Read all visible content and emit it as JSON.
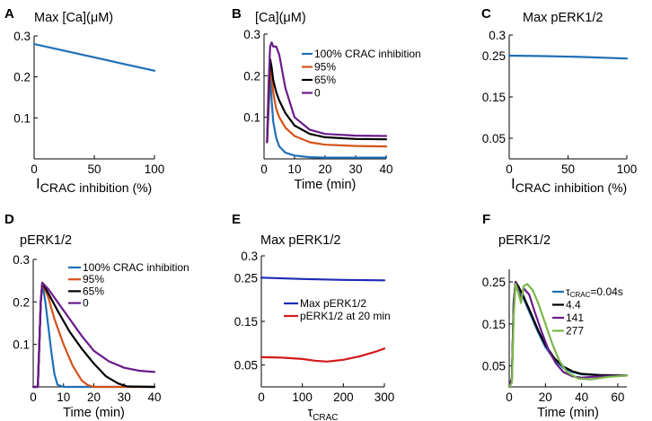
{
  "colors": {
    "blue": "#1f6fb5",
    "orange": "#d4521a",
    "black": "#000000",
    "purple": "#6a1b8a",
    "navy": "#1c2bb5",
    "red": "#d11a1a",
    "green": "#7ab648"
  },
  "chart_data": [
    {
      "id": "A",
      "type": "line",
      "letter": "A",
      "title": "Max [Ca](μM)",
      "xlabel_main": "I",
      "xlabel_sub": "CRAC inhibition (%)",
      "xlim": [
        0,
        100
      ],
      "ylim": [
        0,
        0.3
      ],
      "xticks": [
        0,
        50,
        100
      ],
      "xtick_labels": [
        "0",
        "50",
        "100"
      ],
      "yticks": [
        0.1,
        0.2,
        0.3
      ],
      "ytick_labels": [
        "0.1",
        "0.2",
        "0.3"
      ],
      "series": [
        {
          "name": "Max [Ca]",
          "color": "blue",
          "x": [
            0,
            100
          ],
          "y": [
            0.28,
            0.215
          ]
        }
      ]
    },
    {
      "id": "B",
      "type": "line",
      "letter": "B",
      "title": "[Ca](μM)",
      "xlabel": "Time (min)",
      "xlim": [
        0,
        40
      ],
      "ylim": [
        0,
        0.3
      ],
      "xticks": [
        0,
        10,
        20,
        30,
        40
      ],
      "xtick_labels": [
        "0",
        "10",
        "20",
        "30",
        "40"
      ],
      "yticks": [
        0.1,
        0.2,
        0.3
      ],
      "ytick_labels": [
        "0.1",
        "0.2",
        "0.3"
      ],
      "legend": [
        "100% CRAC inhibition",
        "95%",
        "65%",
        "0"
      ],
      "series": [
        {
          "name": "100% CRAC inhibition",
          "color": "blue",
          "x": [
            1,
            1.5,
            2,
            2.5,
            3,
            4,
            5,
            7,
            10,
            15,
            20,
            30,
            40
          ],
          "y": [
            0.04,
            0.12,
            0.2,
            0.14,
            0.09,
            0.05,
            0.03,
            0.015,
            0.008,
            0.004,
            0.003,
            0.003,
            0.003
          ]
        },
        {
          "name": "95%",
          "color": "orange",
          "x": [
            1,
            1.5,
            2,
            2.5,
            3,
            4,
            5,
            7,
            10,
            15,
            20,
            30,
            40
          ],
          "y": [
            0.04,
            0.14,
            0.22,
            0.2,
            0.16,
            0.12,
            0.1,
            0.075,
            0.055,
            0.04,
            0.034,
            0.031,
            0.03
          ]
        },
        {
          "name": "65%",
          "color": "black",
          "x": [
            1,
            1.5,
            2,
            2.5,
            3,
            4,
            5,
            7,
            10,
            15,
            20,
            30,
            40
          ],
          "y": [
            0.04,
            0.16,
            0.24,
            0.22,
            0.19,
            0.16,
            0.14,
            0.11,
            0.08,
            0.06,
            0.052,
            0.048,
            0.047
          ]
        },
        {
          "name": "0",
          "color": "purple",
          "x": [
            1,
            1.5,
            2,
            2.5,
            3,
            4,
            5,
            7,
            10,
            15,
            20,
            30,
            40
          ],
          "y": [
            0.04,
            0.18,
            0.27,
            0.28,
            0.27,
            0.27,
            0.25,
            0.17,
            0.1,
            0.07,
            0.06,
            0.056,
            0.055
          ]
        }
      ]
    },
    {
      "id": "C",
      "type": "line",
      "letter": "C",
      "title": "Max pERK1/2",
      "xlabel_main": "I",
      "xlabel_sub": "CRAC inhibition (%)",
      "xlim": [
        0,
        100
      ],
      "ylim": [
        0,
        0.3
      ],
      "xticks": [
        0,
        50,
        100
      ],
      "xtick_labels": [
        "0",
        "50",
        "100"
      ],
      "yticks": [
        0.05,
        0.15,
        0.25,
        0.3
      ],
      "ytick_labels": [
        "0.05",
        "0.15",
        "0.25",
        "0.3"
      ],
      "series": [
        {
          "name": "Max pERK1/2",
          "color": "blue",
          "x": [
            0,
            30,
            60,
            100
          ],
          "y": [
            0.25,
            0.249,
            0.247,
            0.243
          ]
        }
      ]
    },
    {
      "id": "D",
      "type": "line",
      "letter": "D",
      "title": "pERK1/2",
      "xlabel": "Time (min)",
      "xlim": [
        0,
        40
      ],
      "ylim": [
        0,
        0.3
      ],
      "xticks": [
        0,
        10,
        20,
        30,
        40
      ],
      "xtick_labels": [
        "0",
        "10",
        "20",
        "30",
        "40"
      ],
      "yticks": [
        0.1,
        0.2,
        0.3
      ],
      "ytick_labels": [
        "0.1",
        "0.2",
        "0.3"
      ],
      "legend": [
        "100% CRAC inhibition",
        "95%",
        "65%",
        "0"
      ],
      "series": [
        {
          "name": "100% CRAC inhibition",
          "color": "blue",
          "x": [
            0,
            1.5,
            2,
            2.5,
            3,
            4,
            5,
            6,
            7,
            8,
            10,
            40
          ],
          "y": [
            0,
            0,
            0.1,
            0.2,
            0.245,
            0.2,
            0.14,
            0.08,
            0.03,
            0.005,
            0,
            0
          ]
        },
        {
          "name": "95%",
          "color": "orange",
          "x": [
            0,
            1.5,
            2,
            2.5,
            3,
            5,
            7,
            10,
            13,
            16,
            18,
            20,
            40
          ],
          "y": [
            0,
            0,
            0.1,
            0.2,
            0.245,
            0.21,
            0.16,
            0.1,
            0.05,
            0.015,
            0.004,
            0,
            0
          ]
        },
        {
          "name": "65%",
          "color": "black",
          "x": [
            0,
            1.5,
            2,
            2.5,
            3,
            5,
            8,
            12,
            16,
            20,
            24,
            28,
            31,
            40
          ],
          "y": [
            0,
            0,
            0.1,
            0.2,
            0.245,
            0.22,
            0.18,
            0.13,
            0.09,
            0.055,
            0.025,
            0.008,
            0.001,
            0
          ]
        },
        {
          "name": "0",
          "color": "purple",
          "x": [
            0,
            1.5,
            2,
            2.5,
            3,
            5,
            8,
            12,
            16,
            20,
            25,
            30,
            35,
            40
          ],
          "y": [
            0,
            0,
            0.1,
            0.2,
            0.245,
            0.23,
            0.2,
            0.16,
            0.12,
            0.085,
            0.06,
            0.045,
            0.038,
            0.035
          ]
        }
      ]
    },
    {
      "id": "E",
      "type": "line",
      "letter": "E",
      "title": "Max pERK1/2",
      "xlabel_main": "τ",
      "xlabel_sub": "CRAC",
      "xlim": [
        0,
        300
      ],
      "ylim": [
        0,
        0.3
      ],
      "xticks": [
        0,
        100,
        200,
        300
      ],
      "xtick_labels": [
        "0",
        "100",
        "200",
        "300"
      ],
      "yticks": [
        0.05,
        0.15,
        0.25,
        0.3
      ],
      "ytick_labels": [
        "0.05",
        "0.15",
        "0.25",
        "0.3"
      ],
      "legend": [
        "Max pERK1/2",
        "pERK1/2 at 20 min"
      ],
      "series": [
        {
          "name": "Max pERK1/2",
          "color": "navy",
          "x": [
            0,
            100,
            200,
            300
          ],
          "y": [
            0.25,
            0.247,
            0.245,
            0.244
          ]
        },
        {
          "name": "pERK1/2 at 20 min",
          "color": "red",
          "x": [
            0,
            50,
            100,
            130,
            160,
            200,
            240,
            280,
            300
          ],
          "y": [
            0.068,
            0.067,
            0.064,
            0.06,
            0.058,
            0.062,
            0.07,
            0.081,
            0.088
          ]
        }
      ]
    },
    {
      "id": "F",
      "type": "line",
      "letter": "F",
      "title": "pERK1/2",
      "xlabel": "Time (min)",
      "xlim": [
        0,
        65
      ],
      "ylim": [
        0,
        0.28
      ],
      "xticks": [
        0,
        20,
        40,
        60
      ],
      "xtick_labels": [
        "0",
        "20",
        "40",
        "60"
      ],
      "yticks": [
        0.05,
        0.15,
        0.25
      ],
      "ytick_labels": [
        "0.05",
        "0.15",
        "0.25"
      ],
      "legend_first_main": "τ",
      "legend_first_sub": "CRAC",
      "legend_first_rest": "=0.04s",
      "legend": [
        "τCRAC=0.04s",
        "4.4",
        "141",
        "277"
      ],
      "series": [
        {
          "name": "τCRAC=0.04s",
          "color": "blue",
          "x": [
            0,
            1.5,
            2.5,
            3.5,
            5,
            8,
            12,
            16,
            20,
            25,
            30,
            35,
            40,
            50,
            65
          ],
          "y": [
            0,
            0.02,
            0.2,
            0.245,
            0.235,
            0.21,
            0.17,
            0.13,
            0.095,
            0.065,
            0.045,
            0.035,
            0.03,
            0.028,
            0.027
          ]
        },
        {
          "name": "4.4",
          "color": "black",
          "x": [
            0,
            1.5,
            2.5,
            3.5,
            5,
            8,
            12,
            16,
            20,
            25,
            30,
            35,
            40,
            50,
            65
          ],
          "y": [
            0,
            0.02,
            0.2,
            0.25,
            0.24,
            0.215,
            0.175,
            0.135,
            0.1,
            0.068,
            0.048,
            0.037,
            0.031,
            0.028,
            0.027
          ]
        },
        {
          "name": "141",
          "color": "purple",
          "x": [
            0,
            1.5,
            2.5,
            3.5,
            5,
            6.5,
            8,
            11,
            14,
            18,
            22,
            26,
            30,
            35,
            40,
            50,
            65
          ],
          "y": [
            0,
            0.02,
            0.19,
            0.25,
            0.23,
            0.21,
            0.235,
            0.22,
            0.18,
            0.13,
            0.085,
            0.055,
            0.035,
            0.025,
            0.022,
            0.025,
            0.027
          ]
        },
        {
          "name": "277",
          "color": "green",
          "x": [
            0,
            1.5,
            2.5,
            3.5,
            5,
            6.5,
            8,
            10,
            13,
            16,
            20,
            24,
            28,
            32,
            38,
            45,
            55,
            65
          ],
          "y": [
            0,
            0.01,
            0.17,
            0.245,
            0.225,
            0.2,
            0.24,
            0.245,
            0.23,
            0.2,
            0.15,
            0.1,
            0.06,
            0.035,
            0.02,
            0.018,
            0.024,
            0.027
          ]
        }
      ]
    }
  ]
}
